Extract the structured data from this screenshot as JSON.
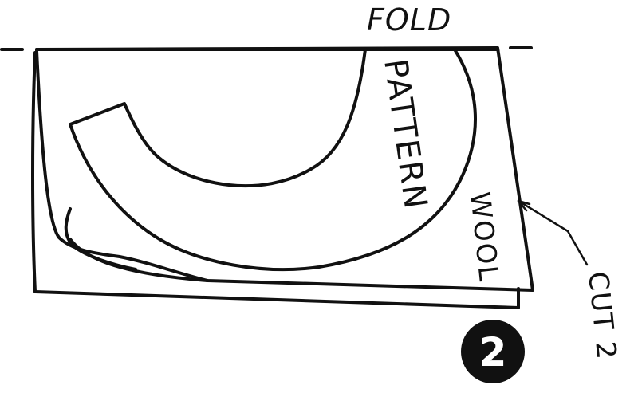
{
  "labels": {
    "fold": "FOLD",
    "pattern": "PATTERN",
    "wool": "WOOL",
    "cut": "CUT 2"
  },
  "step": {
    "number": "2"
  },
  "colors": {
    "ink": "#111111",
    "paper": "#ffffff"
  }
}
